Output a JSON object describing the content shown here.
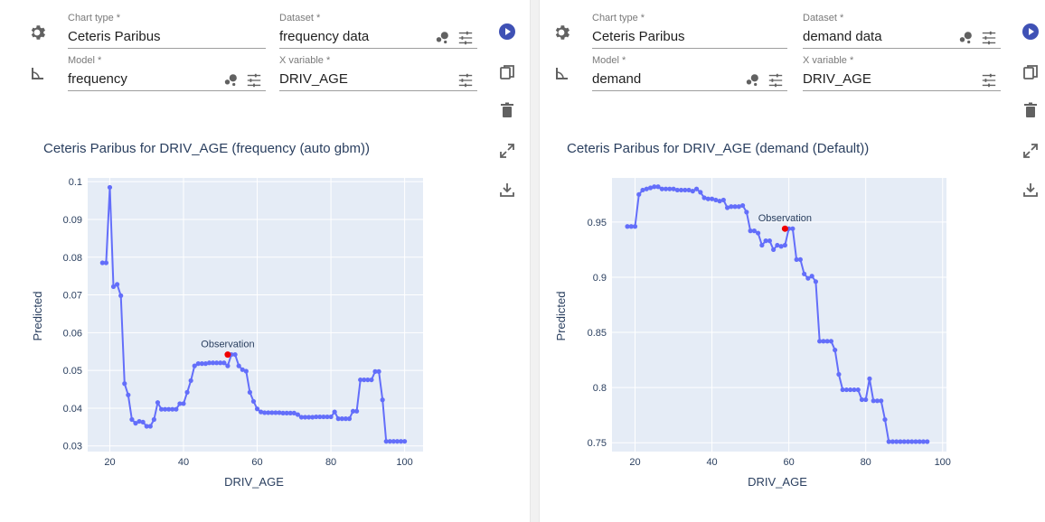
{
  "colors": {
    "line": "#636efa",
    "observation": "#ef0000",
    "plot_bg": "#e5ecf6",
    "axis_text": "#2a3f5f",
    "play": "#3f51b5"
  },
  "icons": {
    "settings": "gear-icon",
    "model": "angle-icon",
    "play": "play-circle-icon",
    "copy": "copy-icon",
    "delete": "trash-icon",
    "expand": "expand-icon",
    "download": "download-icon",
    "bubbles": "bubbles-icon",
    "tune": "tune-icon"
  },
  "panels": [
    {
      "chart_type_label": "Chart type *",
      "chart_type_value": "Ceteris Paribus",
      "dataset_label": "Dataset *",
      "dataset_value": "frequency data",
      "model_label": "Model *",
      "model_value": "frequency",
      "xvar_label": "X variable *",
      "xvar_value": "DRIV_AGE",
      "chart_title": "Ceteris Paribus for DRIV_AGE (frequency (auto gbm))"
    },
    {
      "chart_type_label": "Chart type *",
      "chart_type_value": "Ceteris Paribus",
      "dataset_label": "Dataset *",
      "dataset_value": "demand data",
      "model_label": "Model *",
      "model_value": "demand",
      "xvar_label": "X variable *",
      "xvar_value": "DRIV_AGE",
      "chart_title": "Ceteris Paribus for DRIV_AGE (demand (Default))"
    }
  ],
  "chart_data": [
    {
      "type": "line",
      "title": "Ceteris Paribus for DRIV_AGE (frequency (auto gbm))",
      "xlabel": "DRIV_AGE",
      "ylabel": "Predicted",
      "xlim": [
        14,
        105
      ],
      "ylim": [
        0.0285,
        0.101
      ],
      "xticks": [
        20,
        40,
        60,
        80,
        100
      ],
      "yticks": [
        0.03,
        0.04,
        0.05,
        0.06,
        0.07,
        0.08,
        0.09,
        0.1
      ],
      "ytick_labels": [
        "0.03",
        "0.04",
        "0.05",
        "0.06",
        "0.07",
        "0.08",
        "0.09",
        "0.1"
      ],
      "grid": true,
      "series": [
        {
          "x": [
            18,
            19,
            20,
            21,
            22,
            23,
            24,
            25,
            26,
            27,
            28,
            29,
            30,
            31,
            32,
            33,
            34,
            35,
            36,
            37,
            38,
            39,
            40,
            41,
            42,
            43,
            44,
            45,
            46,
            47,
            48,
            49,
            50,
            51,
            52,
            53,
            54,
            55,
            56,
            57,
            58,
            59,
            60,
            61,
            62,
            63,
            64,
            65,
            66,
            67,
            68,
            69,
            70,
            71,
            72,
            73,
            74,
            75,
            76,
            77,
            78,
            79,
            80,
            81,
            82,
            83,
            84,
            85,
            86,
            87,
            88,
            89,
            90,
            91,
            92,
            93,
            94,
            95,
            96,
            97,
            98,
            99,
            100
          ],
          "y": [
            0.0785,
            0.0785,
            0.0985,
            0.0722,
            0.0728,
            0.0698,
            0.0465,
            0.0435,
            0.037,
            0.036,
            0.0365,
            0.0363,
            0.0352,
            0.0352,
            0.037,
            0.0415,
            0.0397,
            0.0397,
            0.0397,
            0.0397,
            0.0397,
            0.0412,
            0.0412,
            0.0442,
            0.0473,
            0.0512,
            0.0518,
            0.0518,
            0.0518,
            0.052,
            0.052,
            0.052,
            0.052,
            0.052,
            0.0512,
            0.0542,
            0.0542,
            0.0512,
            0.0502,
            0.0498,
            0.0442,
            0.0418,
            0.0398,
            0.039,
            0.0388,
            0.0388,
            0.0388,
            0.0388,
            0.0388,
            0.0387,
            0.0387,
            0.0387,
            0.0387,
            0.0383,
            0.0376,
            0.0376,
            0.0376,
            0.0376,
            0.0377,
            0.0377,
            0.0377,
            0.0377,
            0.0377,
            0.039,
            0.0372,
            0.0372,
            0.0372,
            0.0372,
            0.0392,
            0.0392,
            0.0475,
            0.0475,
            0.0475,
            0.0475,
            0.0497,
            0.0497,
            0.0422,
            0.0312,
            0.0312,
            0.0312,
            0.0312,
            0.0312,
            0.0312
          ]
        }
      ],
      "observation": {
        "x": 52,
        "y": 0.0542,
        "label": "Observation"
      }
    },
    {
      "type": "line",
      "title": "Ceteris Paribus for DRIV_AGE (demand (Default))",
      "xlabel": "DRIV_AGE",
      "ylabel": "Predicted",
      "xlim": [
        14,
        101
      ],
      "ylim": [
        0.742,
        0.99
      ],
      "xticks": [
        20,
        40,
        60,
        80,
        100
      ],
      "yticks": [
        0.75,
        0.8,
        0.85,
        0.9,
        0.95
      ],
      "ytick_labels": [
        "0.75",
        "0.8",
        "0.85",
        "0.9",
        "0.95"
      ],
      "grid": true,
      "series": [
        {
          "x": [
            18,
            19,
            20,
            21,
            22,
            23,
            24,
            25,
            26,
            27,
            28,
            29,
            30,
            31,
            32,
            33,
            34,
            35,
            36,
            37,
            38,
            39,
            40,
            41,
            42,
            43,
            44,
            45,
            46,
            47,
            48,
            49,
            50,
            51,
            52,
            53,
            54,
            55,
            56,
            57,
            58,
            59,
            60,
            61,
            62,
            63,
            64,
            65,
            66,
            67,
            68,
            69,
            70,
            71,
            72,
            73,
            74,
            75,
            76,
            77,
            78,
            79,
            80,
            81,
            82,
            83,
            84,
            85,
            86,
            87,
            88,
            89,
            90,
            91,
            92,
            93,
            94,
            95,
            96
          ],
          "y": [
            0.946,
            0.946,
            0.946,
            0.975,
            0.979,
            0.98,
            0.981,
            0.982,
            0.982,
            0.98,
            0.98,
            0.98,
            0.98,
            0.979,
            0.979,
            0.979,
            0.979,
            0.978,
            0.98,
            0.977,
            0.972,
            0.971,
            0.971,
            0.97,
            0.969,
            0.97,
            0.963,
            0.964,
            0.964,
            0.964,
            0.965,
            0.959,
            0.942,
            0.942,
            0.94,
            0.929,
            0.933,
            0.933,
            0.925,
            0.929,
            0.928,
            0.929,
            0.944,
            0.944,
            0.916,
            0.916,
            0.903,
            0.899,
            0.901,
            0.896,
            0.842,
            0.842,
            0.842,
            0.842,
            0.834,
            0.812,
            0.798,
            0.798,
            0.798,
            0.798,
            0.798,
            0.789,
            0.789,
            0.808,
            0.788,
            0.788,
            0.788,
            0.771,
            0.751,
            0.751,
            0.751,
            0.751,
            0.751,
            0.751,
            0.751,
            0.751,
            0.751,
            0.751,
            0.751
          ]
        }
      ],
      "observation": {
        "x": 59,
        "y": 0.944,
        "label": "Observation"
      }
    }
  ]
}
